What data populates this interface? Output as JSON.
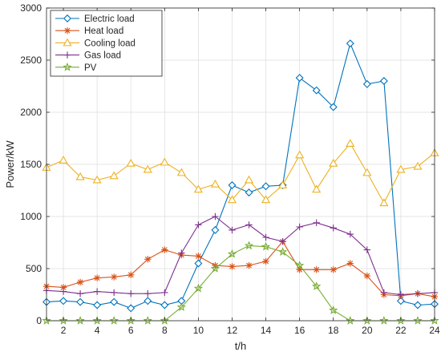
{
  "chart_data": {
    "type": "line",
    "xlabel": "t/h",
    "ylabel": "Power/kW",
    "xlim": [
      1,
      24
    ],
    "ylim": [
      0,
      3000
    ],
    "xticks": [
      2,
      4,
      6,
      8,
      10,
      12,
      14,
      16,
      18,
      20,
      22,
      24
    ],
    "yticks": [
      0,
      500,
      1000,
      1500,
      2000,
      2500,
      3000
    ],
    "grid": true,
    "legend_position": "top-left",
    "x": [
      1,
      2,
      3,
      4,
      5,
      6,
      7,
      8,
      9,
      10,
      11,
      12,
      13,
      14,
      15,
      16,
      17,
      18,
      19,
      20,
      21,
      22,
      23,
      24
    ],
    "series": [
      {
        "name": "Electric load",
        "color": "#0072BD",
        "marker": "diamond",
        "values": [
          180,
          190,
          180,
          150,
          180,
          120,
          190,
          150,
          190,
          550,
          870,
          1300,
          1230,
          1290,
          1300,
          2330,
          2210,
          2050,
          2660,
          2270,
          2300,
          190,
          150,
          160
        ]
      },
      {
        "name": "Heat load",
        "color": "#D95319",
        "marker": "asterisk",
        "values": [
          330,
          320,
          370,
          410,
          420,
          440,
          590,
          680,
          630,
          620,
          530,
          520,
          530,
          570,
          760,
          490,
          490,
          490,
          550,
          430,
          250,
          240,
          260,
          230
        ]
      },
      {
        "name": "Cooling load",
        "color": "#EDB120",
        "marker": "triangle",
        "values": [
          1470,
          1540,
          1380,
          1350,
          1390,
          1510,
          1450,
          1520,
          1420,
          1260,
          1310,
          1160,
          1350,
          1160,
          1300,
          1590,
          1260,
          1510,
          1700,
          1420,
          1130,
          1450,
          1480,
          1610
        ]
      },
      {
        "name": "Gas load",
        "color": "#7E2F8E",
        "marker": "plus",
        "values": [
          290,
          280,
          260,
          280,
          270,
          260,
          260,
          270,
          650,
          920,
          1000,
          870,
          920,
          800,
          760,
          900,
          940,
          890,
          830,
          680,
          270,
          250,
          260,
          270
        ]
      },
      {
        "name": "PV",
        "color": "#77AC30",
        "marker": "star",
        "values": [
          0,
          0,
          0,
          0,
          0,
          0,
          0,
          0,
          130,
          310,
          500,
          640,
          720,
          710,
          660,
          530,
          330,
          100,
          0,
          0,
          0,
          0,
          0,
          0
        ]
      }
    ]
  }
}
